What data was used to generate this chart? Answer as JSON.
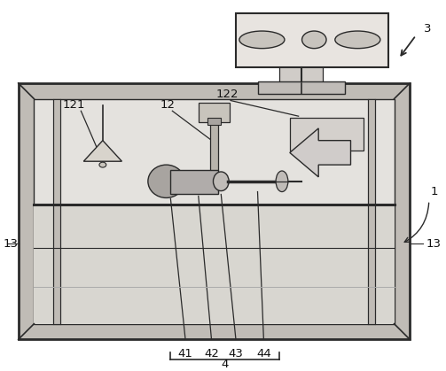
{
  "bg_color": "#ffffff",
  "line_color": "#2a2a2a",
  "light_line": "#aaaaaa",
  "mid_line": "#888888",
  "label_color": "#111111",
  "box_face": "#ebebeb",
  "box_inner": "#e4e2de",
  "border_face": "#c0bcb6",
  "inner_bg": "#dcdad4",
  "lower_bg": "#d8d6d0",
  "figsize": [
    5.03,
    4.19
  ],
  "dpi": 100
}
